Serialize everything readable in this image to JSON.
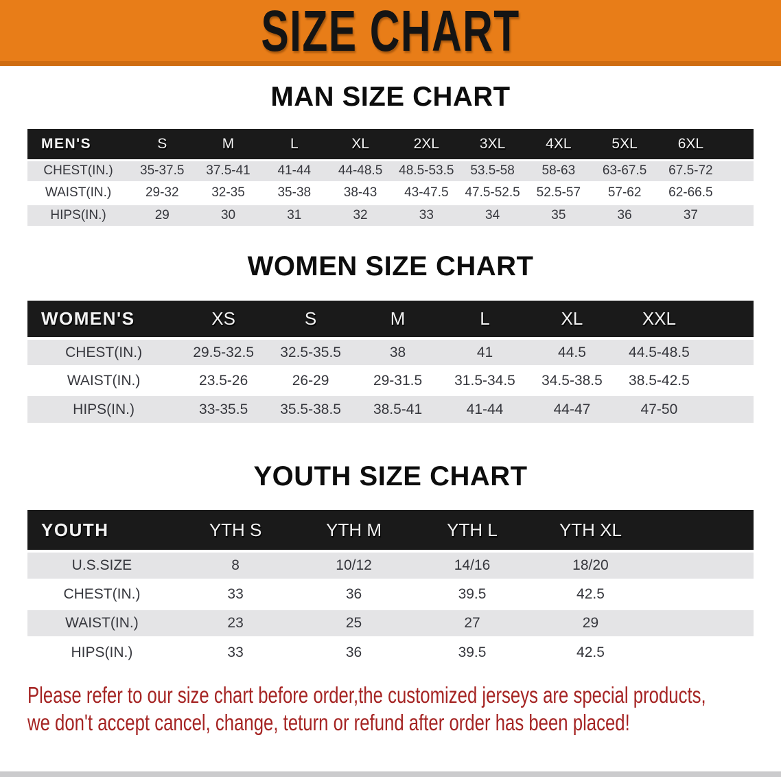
{
  "banner": {
    "title": "SIZE CHART",
    "bg_color": "#e87d18",
    "border_color": "#cf6c10",
    "text_color": "#141414"
  },
  "sections": [
    {
      "id": "men",
      "title": "MAN SIZE CHART",
      "header_label": "MEN'S",
      "columns": [
        "S",
        "M",
        "L",
        "XL",
        "2XL",
        "3XL",
        "4XL",
        "5XL",
        "6XL"
      ],
      "rows": [
        {
          "label": "CHEST(IN.)",
          "values": [
            "35-37.5",
            "37.5-41",
            "41-44",
            "44-48.5",
            "48.5-53.5",
            "53.5-58",
            "58-63",
            "63-67.5",
            "67.5-72"
          ]
        },
        {
          "label": "WAIST(IN.)",
          "values": [
            "29-32",
            "32-35",
            "35-38",
            "38-43",
            "43-47.5",
            "47.5-52.5",
            "52.5-57",
            "57-62",
            "62-66.5"
          ]
        },
        {
          "label": "HIPS(IN.)",
          "values": [
            "29",
            "30",
            "31",
            "32",
            "33",
            "34",
            "35",
            "36",
            "37"
          ]
        }
      ]
    },
    {
      "id": "women",
      "title": "WOMEN SIZE CHART",
      "header_label": "WOMEN'S",
      "columns": [
        "XS",
        "S",
        "M",
        "L",
        "XL",
        "XXL"
      ],
      "rows": [
        {
          "label": "CHEST(IN.)",
          "values": [
            "29.5-32.5",
            "32.5-35.5",
            "38",
            "41",
            "44.5",
            "44.5-48.5"
          ]
        },
        {
          "label": "WAIST(IN.)",
          "values": [
            "23.5-26",
            "26-29",
            "29-31.5",
            "31.5-34.5",
            "34.5-38.5",
            "38.5-42.5"
          ]
        },
        {
          "label": "HIPS(IN.)",
          "values": [
            "33-35.5",
            "35.5-38.5",
            "38.5-41",
            "41-44",
            "44-47",
            "47-50"
          ]
        }
      ]
    },
    {
      "id": "youth",
      "title": "YOUTH SIZE CHART",
      "header_label": "YOUTH",
      "columns": [
        "YTH S",
        "YTH M",
        "YTH L",
        "YTH XL"
      ],
      "rows": [
        {
          "label": "U.S.SIZE",
          "values": [
            "8",
            "10/12",
            "14/16",
            "18/20"
          ]
        },
        {
          "label": "CHEST(IN.)",
          "values": [
            "33",
            "36",
            "39.5",
            "42.5"
          ]
        },
        {
          "label": "WAIST(IN.)",
          "values": [
            "23",
            "25",
            "27",
            "29"
          ]
        },
        {
          "label": "HIPS(IN.)",
          "values": [
            "33",
            "36",
            "39.5",
            "42.5"
          ]
        }
      ]
    }
  ],
  "table_colors": {
    "header_bg": "#1a1a1a",
    "header_text": "#f3f3f3",
    "row_gray": "#e4e4e6",
    "row_white": "#ffffff",
    "cell_text": "#36373d"
  },
  "disclaimer": {
    "lines": [
      "Please refer to our size chart before order,the customized jerseys are special products,",
      "we don't accept cancel, change, teturn or refund after order has been placed!"
    ],
    "color": "#a52423"
  }
}
